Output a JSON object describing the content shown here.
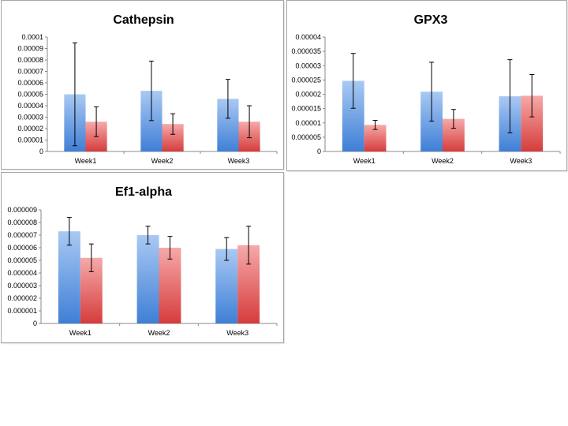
{
  "colors": {
    "series1_top": "#a9c9f3",
    "series1_bottom": "#3f7fd6",
    "series2_top": "#f6a9a9",
    "series2_bottom": "#d63c3c",
    "axis": "#888888",
    "errorbar": "#000000"
  },
  "chart_data": [
    {
      "type": "bar",
      "title": "Cathepsin",
      "categories": [
        "Week1",
        "Week2",
        "Week3"
      ],
      "ylim": [
        0,
        0.0001
      ],
      "yticks": [
        "0",
        "0.00001",
        "0.00002",
        "0.00003",
        "0.00004",
        "0.00005",
        "0.00006",
        "0.00007",
        "0.00008",
        "0.00009",
        "0.0001"
      ],
      "grid": false,
      "legend": "none",
      "series": [
        {
          "values": [
            5e-05,
            5.3e-05,
            4.6e-05
          ],
          "errors": [
            4.5e-05,
            2.6e-05,
            1.7e-05
          ]
        },
        {
          "values": [
            2.6e-05,
            2.4e-05,
            2.6e-05
          ],
          "errors": [
            1.3e-05,
            9e-06,
            1.4e-05
          ]
        }
      ]
    },
    {
      "type": "bar",
      "title": "GPX3",
      "categories": [
        "Week1",
        "Week2",
        "Week3"
      ],
      "ylim": [
        0,
        4e-05
      ],
      "yticks": [
        "0",
        "0.000005",
        "0.00001",
        "0.000015",
        "0.00002",
        "0.000025",
        "0.00003",
        "0.000035",
        "0.00004"
      ],
      "grid": false,
      "legend": "none",
      "series": [
        {
          "values": [
            2.47e-05,
            2.09e-05,
            1.93e-05
          ],
          "errors": [
            9.6e-06,
            1.03e-05,
            1.28e-05
          ]
        },
        {
          "values": [
            9.3e-06,
            1.14e-05,
            1.95e-05
          ],
          "errors": [
            1.6e-06,
            3.3e-06,
            7.4e-06
          ]
        }
      ]
    },
    {
      "type": "bar",
      "title": "Ef1-alpha",
      "categories": [
        "Week1",
        "Week2",
        "Week3"
      ],
      "ylim": [
        0,
        9e-06
      ],
      "yticks": [
        "0",
        "0.000001",
        "0.000002",
        "0.000003",
        "0.000004",
        "0.000005",
        "0.000006",
        "0.000007",
        "0.000008",
        "0.000009"
      ],
      "grid": false,
      "legend": "none",
      "series": [
        {
          "values": [
            7.3e-06,
            7e-06,
            5.9e-06
          ],
          "errors": [
            1.1e-06,
            7e-07,
            9e-07
          ]
        },
        {
          "values": [
            5.2e-06,
            6e-06,
            6.2e-06
          ],
          "errors": [
            1.1e-06,
            9e-07,
            1.5e-06
          ]
        }
      ]
    }
  ]
}
